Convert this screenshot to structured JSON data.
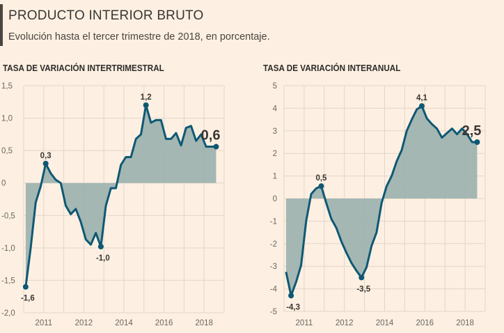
{
  "header": {
    "title": "PRODUCTO INTERIOR BRUTO",
    "subtitle": "Evolución hasta el tercer trimestre de 2018, en porcentaje."
  },
  "colors": {
    "line": "#0e5874",
    "fill": "#9fb3b0",
    "grid": "#e2d6c8",
    "background": "#fdf0e2"
  },
  "chart_data": [
    {
      "type": "area",
      "title": "TASA DE VARIACIÓN INTERTRIMESTRAL",
      "ylim": [
        -2.0,
        1.5
      ],
      "y_ticks": [
        "1,5",
        "1,0",
        "0,5",
        "0",
        "-0,5",
        "-1,0",
        "-1,5",
        "-2,0"
      ],
      "y_tick_values": [
        1.5,
        1.0,
        0.5,
        0,
        -0.5,
        -1.0,
        -1.5,
        -2.0
      ],
      "x_tick_labels": [
        "2011",
        "2012",
        "2014",
        "2016",
        "2018"
      ],
      "grid": true,
      "values": [
        -1.6,
        -1.0,
        -0.3,
        -0.05,
        0.3,
        0.15,
        0.05,
        0.0,
        -0.35,
        -0.48,
        -0.4,
        -0.6,
        -0.87,
        -0.95,
        -0.77,
        -0.98,
        -0.35,
        -0.08,
        -0.08,
        0.28,
        0.4,
        0.4,
        0.68,
        0.75,
        1.2,
        0.93,
        0.97,
        0.97,
        0.68,
        0.68,
        0.77,
        0.58,
        0.85,
        0.88,
        0.65,
        0.75,
        0.56,
        0.56,
        0.56
      ],
      "annotations": [
        {
          "index": 0,
          "text": "-1,6",
          "pos": "below"
        },
        {
          "index": 4,
          "text": "0,3",
          "pos": "above"
        },
        {
          "index": 15,
          "text": "-1,0",
          "pos": "below"
        },
        {
          "index": 24,
          "text": "1,2",
          "pos": "above"
        },
        {
          "index": 38,
          "text": "0,6",
          "pos": "last"
        }
      ]
    },
    {
      "type": "area",
      "title": "TASA DE VARIACIÓN INTERANUAL",
      "ylim": [
        -5,
        5
      ],
      "y_ticks": [
        "5",
        "4",
        "3",
        "2",
        "1",
        "0",
        "-1",
        "-2",
        "-3",
        "-4",
        "-5"
      ],
      "y_tick_values": [
        5,
        4,
        3,
        2,
        1,
        0,
        -1,
        -2,
        -3,
        -4,
        -5
      ],
      "x_tick_labels": [
        "2011",
        "2012",
        "2014",
        "2016",
        "2018"
      ],
      "grid": true,
      "values": [
        -3.25,
        -4.3,
        -3.7,
        -2.95,
        -1.0,
        0.2,
        0.45,
        0.55,
        -0.2,
        -0.9,
        -1.3,
        -1.9,
        -2.4,
        -2.85,
        -3.2,
        -3.5,
        -3.05,
        -2.1,
        -1.5,
        -0.2,
        0.55,
        1.0,
        1.65,
        2.15,
        3.0,
        3.5,
        3.95,
        4.1,
        3.55,
        3.3,
        3.1,
        2.7,
        2.9,
        3.1,
        2.85,
        3.1,
        2.85,
        2.5,
        2.5
      ],
      "annotations": [
        {
          "index": 1,
          "text": "-4,3",
          "pos": "below"
        },
        {
          "index": 7,
          "text": "0,5",
          "pos": "above"
        },
        {
          "index": 15,
          "text": "-3,5",
          "pos": "below"
        },
        {
          "index": 27,
          "text": "4,1",
          "pos": "above"
        },
        {
          "index": 38,
          "text": "2,5",
          "pos": "last"
        }
      ]
    }
  ]
}
